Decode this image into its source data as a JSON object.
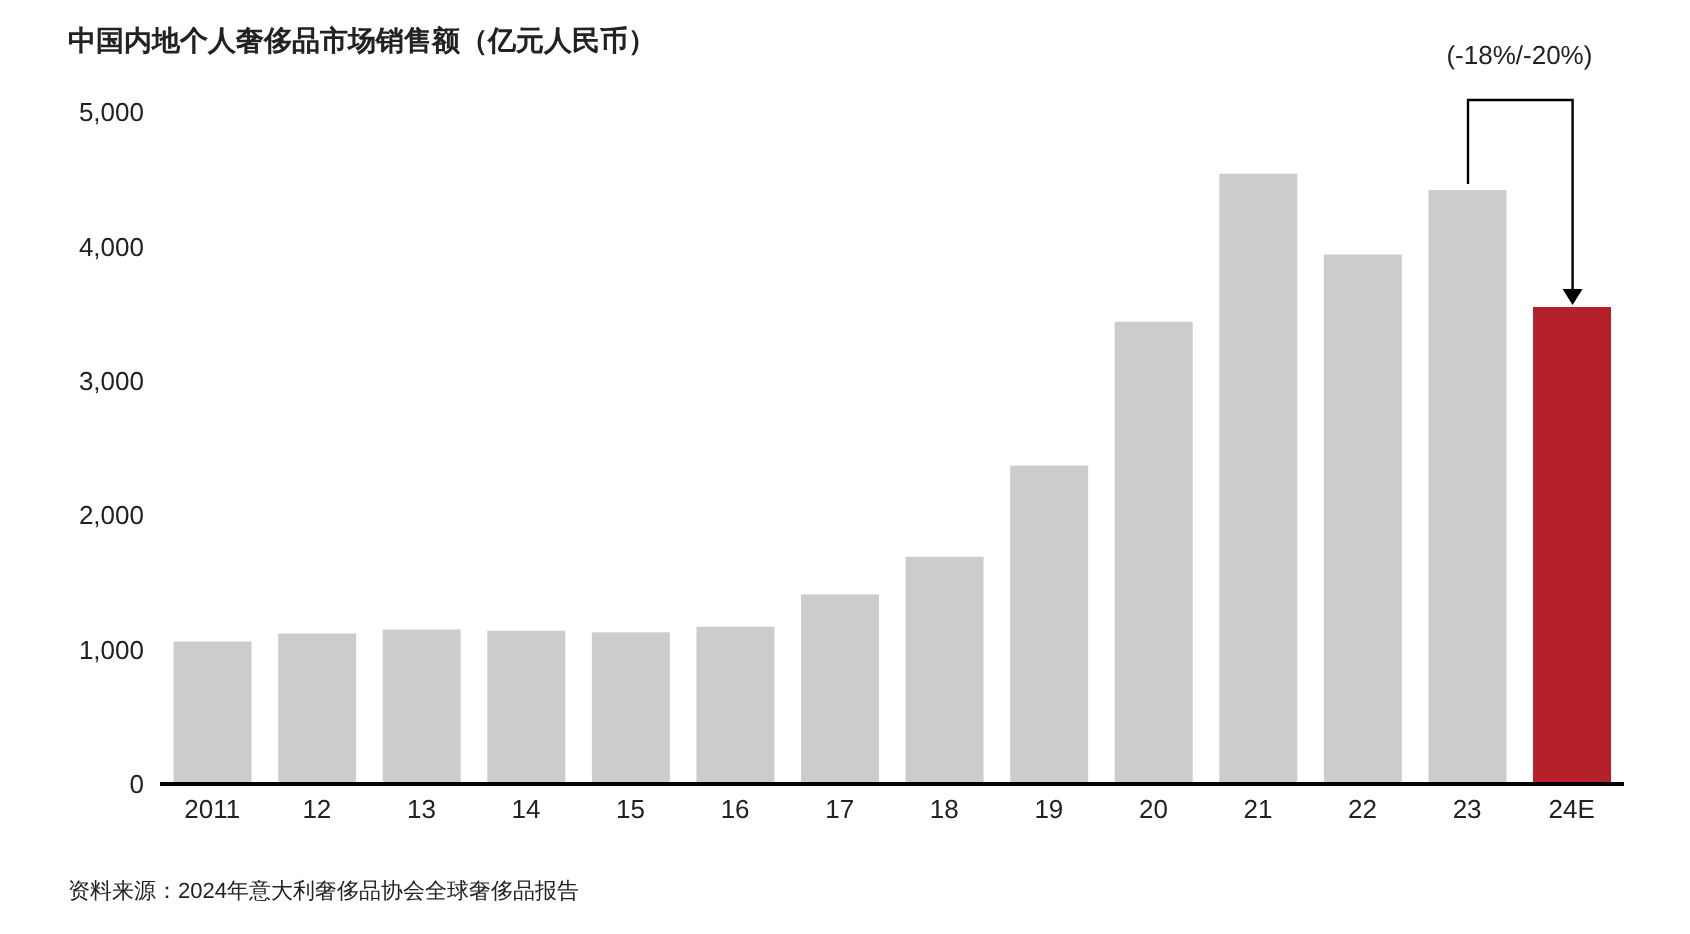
{
  "chart_data": {
    "type": "bar",
    "title": "中国内地个人奢侈品市场销售额（亿元人民币）",
    "categories": [
      "2011",
      "12",
      "13",
      "14",
      "15",
      "16",
      "17",
      "18",
      "19",
      "20",
      "21",
      "22",
      "23",
      "24E"
    ],
    "values": [
      1060,
      1120,
      1150,
      1140,
      1130,
      1170,
      1410,
      1690,
      2370,
      3440,
      4540,
      3940,
      4420,
      3550
    ],
    "colors": [
      "#cccccc",
      "#cccccc",
      "#cccccc",
      "#cccccc",
      "#cccccc",
      "#cccccc",
      "#cccccc",
      "#cccccc",
      "#cccccc",
      "#cccccc",
      "#cccccc",
      "#cccccc",
      "#cccccc",
      "#b5212b"
    ],
    "ylim": [
      0,
      5000
    ],
    "yticks": [
      0,
      {
        "value": 1000,
        "label": "1,000"
      },
      {
        "value": 2000,
        "label": "2,000"
      },
      {
        "value": 3000,
        "label": "3,000"
      },
      {
        "value": 4000,
        "label": "4,000"
      },
      {
        "value": 5000,
        "label": "5,000"
      }
    ],
    "grid": false,
    "legend": false,
    "annotations": [
      "(-18%/-20%)",
      "资料来源：2024年意大利奢侈品协会全球奢侈品报告"
    ]
  }
}
